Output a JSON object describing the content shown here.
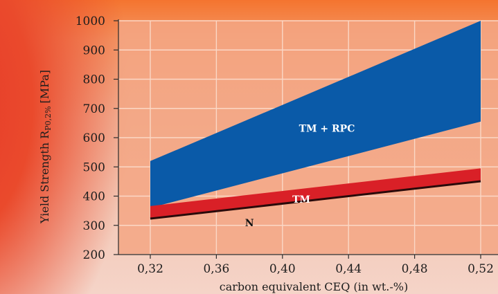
{
  "chart_data": {
    "type": "area",
    "ylabel_main": "Yield Strength R",
    "ylabel_sub": "P0,2%",
    "ylabel_unit": "[MPa]",
    "xlabel": "carbon equivalent CEQ (in wt.-%)",
    "x_ticks": [
      "0,32",
      "0,36",
      "0,40",
      "0,44",
      "0,48",
      "0,52"
    ],
    "y_ticks": [
      "200",
      "300",
      "400",
      "500",
      "600",
      "700",
      "800",
      "900",
      "1000"
    ],
    "xlim": [
      0.3,
      0.54
    ],
    "ylim": [
      200,
      1000
    ],
    "grid": true,
    "regions": [
      {
        "name": "TM + RPC",
        "color": "#0a5aa8",
        "label_color": "#ffffff",
        "label_at": [
          0.41,
          620
        ],
        "upper": [
          [
            0.32,
            520
          ],
          [
            0.52,
            1000
          ]
        ],
        "lower": [
          [
            0.32,
            360
          ],
          [
            0.52,
            655
          ]
        ]
      },
      {
        "name": "TM",
        "color": "#d92027",
        "label_color": "#ffffff",
        "label_at": [
          0.406,
          378
        ],
        "upper": [
          [
            0.32,
            366
          ],
          [
            0.52,
            495
          ]
        ],
        "lower": [
          [
            0.32,
            325
          ],
          [
            0.52,
            453
          ]
        ]
      }
    ],
    "lines": [
      {
        "name": "N",
        "color": "#2a0a0a",
        "label_color": "#111111",
        "label_at": [
          0.38,
          325
        ],
        "points": [
          [
            0.32,
            323
          ],
          [
            0.52,
            451
          ]
        ]
      }
    ]
  }
}
